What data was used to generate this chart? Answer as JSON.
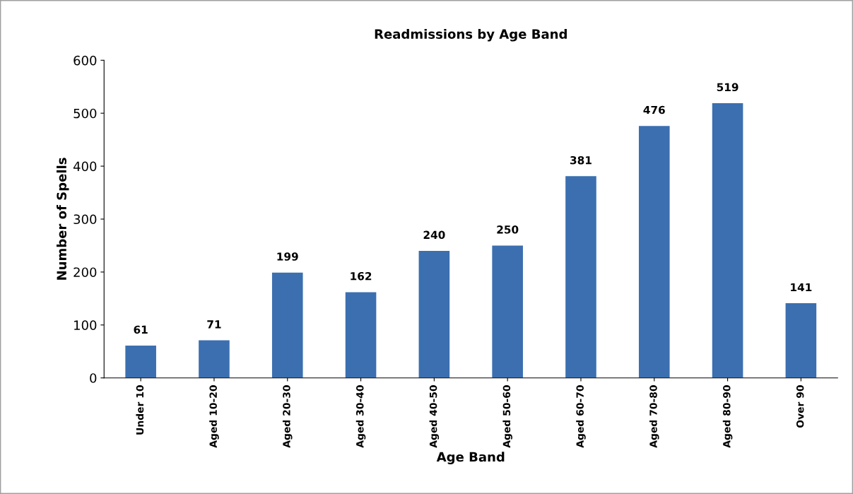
{
  "chart_data": {
    "type": "bar",
    "title": "Readmissions by Age Band",
    "xlabel": "Age Band",
    "ylabel": "Number of Spells",
    "categories": [
      "Under 10",
      "Aged 10-20",
      "Aged 20-30",
      "Aged 30-40",
      "Aged 40-50",
      "Aged 50-60",
      "Aged 60-70",
      "Aged 70-80",
      "Aged 80-90",
      "Over 90"
    ],
    "values": [
      61,
      71,
      199,
      162,
      240,
      250,
      381,
      476,
      519,
      141
    ],
    "color": "#3b6fb0",
    "ylim": [
      0,
      600
    ],
    "yticks": [
      0,
      100,
      200,
      300,
      400,
      500,
      600
    ],
    "grid": false,
    "data_labels": true
  }
}
